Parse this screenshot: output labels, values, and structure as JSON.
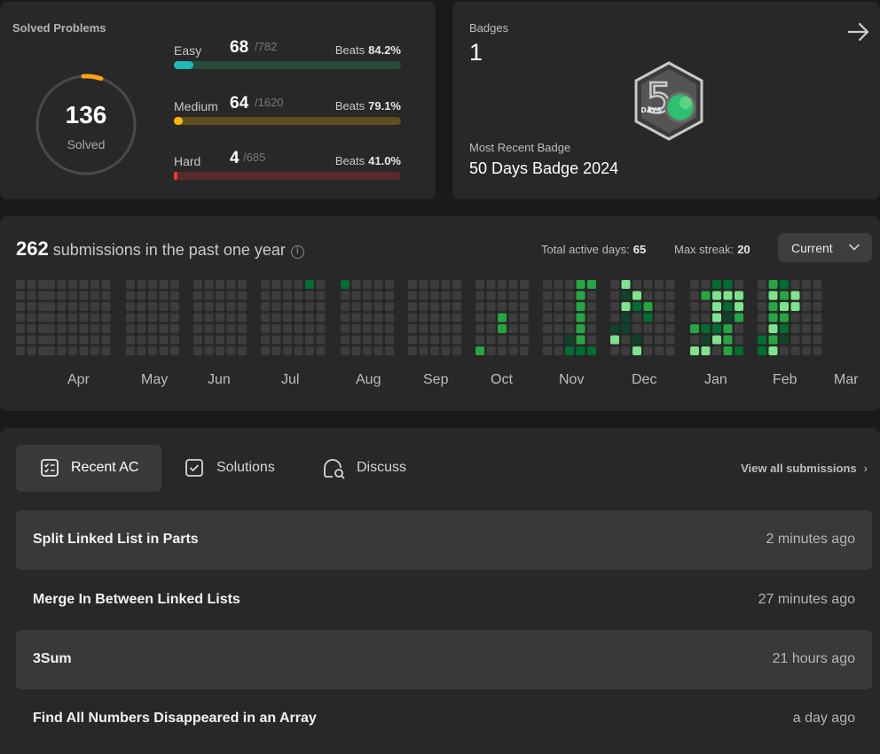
{
  "solved": {
    "title": "Solved Problems",
    "total": "136",
    "total_label": "Solved",
    "difficulties": [
      {
        "name": "Easy",
        "count": "68",
        "total": "/782",
        "beats_label": "Beats",
        "beats": "84.2%",
        "fraction": 0.087,
        "color": "#1cbaba",
        "track": "#2a4a3c"
      },
      {
        "name": "Medium",
        "count": "64",
        "total": "/1620",
        "beats_label": "Beats",
        "beats": "79.1%",
        "fraction": 0.04,
        "color": "#ffb700",
        "track": "#5e4e20"
      },
      {
        "name": "Hard",
        "count": "4",
        "total": "/685",
        "beats_label": "Beats",
        "beats": "41.0%",
        "fraction": 0.006,
        "color": "#f63737",
        "track": "#5a2b2b"
      }
    ]
  },
  "badges": {
    "title": "Badges",
    "count": "1",
    "recent_label": "Most Recent Badge",
    "recent_name": "50 Days Badge 2024",
    "badge_text": "DAYS",
    "badge_numeral": "5"
  },
  "calendar": {
    "count": "262",
    "text": "submissions in the past one year",
    "info_glyph": "i",
    "active_days_label": "Total active days:",
    "active_days": "65",
    "max_streak_label": "Max streak:",
    "max_streak": "20",
    "range": "Current",
    "months": [
      "Apr",
      "May",
      "Jun",
      "Jul",
      "Aug",
      "Sep",
      "Oct",
      "Nov",
      "Dec",
      "Jan",
      "Feb",
      "Mar"
    ],
    "colors": {
      "empty": "#3d3d3d",
      "l1": "#0e4429",
      "l2": "#006d32",
      "l3": "#26a641",
      "l4": "#7ee38d"
    }
  },
  "tabs": [
    {
      "label": "Recent AC",
      "icon": "list-check-icon"
    },
    {
      "label": "Solutions",
      "icon": "checkbox-icon"
    },
    {
      "label": "Discuss",
      "icon": "chat-search-icon"
    }
  ],
  "view_all": "View all submissions",
  "submissions": [
    {
      "title": "Split Linked List in Parts",
      "time": "2 minutes ago"
    },
    {
      "title": "Merge In Between Linked Lists",
      "time": "27 minutes ago"
    },
    {
      "title": "3Sum",
      "time": "21 hours ago"
    },
    {
      "title": "Find All Numbers Disappeared in an Array",
      "time": "a day ago"
    }
  ]
}
